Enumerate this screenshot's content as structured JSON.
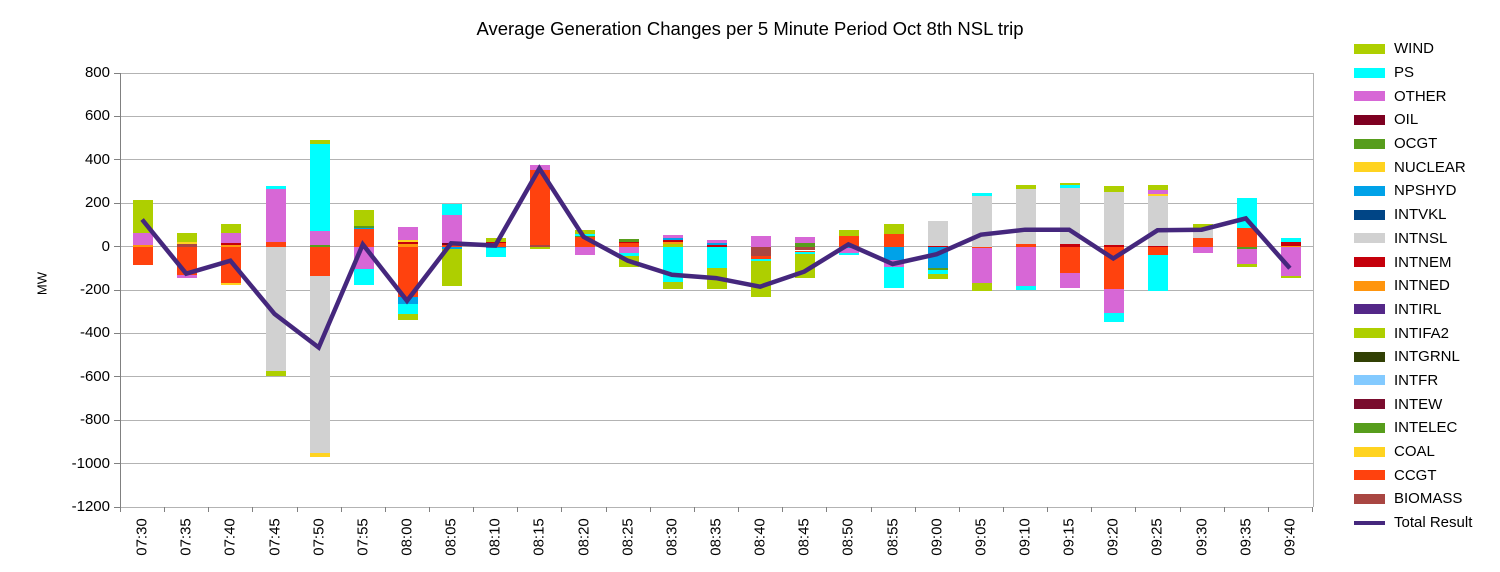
{
  "title": "Average Generation Changes per 5 Minute Period Oct 8th NSL trip",
  "y_axis": {
    "label": "MW",
    "min": -1200,
    "max": 800,
    "step": 200,
    "ticks": [
      "800",
      "600",
      "400",
      "200",
      "0",
      "-200",
      "-400",
      "-600",
      "-800",
      "-1000",
      "-1200"
    ]
  },
  "legend": {
    "position": "right",
    "items": [
      {
        "label": "WIND",
        "color": "#AECF00",
        "type": "box"
      },
      {
        "label": "PS",
        "color": "#00FFFF",
        "type": "box"
      },
      {
        "label": "OTHER",
        "color": "#D767D6",
        "type": "box"
      },
      {
        "label": "OIL",
        "color": "#7E0021",
        "type": "box"
      },
      {
        "label": "OCGT",
        "color": "#579D1C",
        "type": "box"
      },
      {
        "label": "NUCLEAR",
        "color": "#FFD320",
        "type": "box"
      },
      {
        "label": "NPSHYD",
        "color": "#00A2E8",
        "type": "box"
      },
      {
        "label": "INTVKL",
        "color": "#004586",
        "type": "box"
      },
      {
        "label": "INTNSL",
        "color": "#D1D1D1",
        "type": "box"
      },
      {
        "label": "INTNEM",
        "color": "#C5000B",
        "type": "box"
      },
      {
        "label": "INTNED",
        "color": "#FF950E",
        "type": "box"
      },
      {
        "label": "INTIRL",
        "color": "#542788",
        "type": "box"
      },
      {
        "label": "INTIFA2",
        "color": "#AECF00",
        "type": "box"
      },
      {
        "label": "INTGRNL",
        "color": "#314004",
        "type": "box"
      },
      {
        "label": "INTFR",
        "color": "#83CAFF",
        "type": "box"
      },
      {
        "label": "INTEW",
        "color": "#7A0C2E",
        "type": "box"
      },
      {
        "label": "INTELEC",
        "color": "#579D1C",
        "type": "box"
      },
      {
        "label": "COAL",
        "color": "#FFD320",
        "type": "box"
      },
      {
        "label": "CCGT",
        "color": "#FF420E",
        "type": "box"
      },
      {
        "label": "BIOMASS",
        "color": "#A94642",
        "type": "box"
      },
      {
        "label": "Total Result",
        "color": "#45277D",
        "type": "line"
      }
    ]
  },
  "chart_data": {
    "type": "bar",
    "subtype": "stacked-bar-with-line",
    "title": "Average Generation Changes per 5 Minute Period Oct 8th NSL trip",
    "xlabel": "",
    "ylabel": "MW",
    "ylim": [
      -1200,
      800
    ],
    "grid": "horizontal",
    "legend_position": "right",
    "categories": [
      "07:30",
      "07:35",
      "07:40",
      "07:45",
      "07:50",
      "07:55",
      "08:00",
      "08:05",
      "08:10",
      "08:15",
      "08:20",
      "08:25",
      "08:30",
      "08:35",
      "08:40",
      "08:45",
      "08:50",
      "08:55",
      "09:00",
      "09:05",
      "09:10",
      "09:15",
      "09:20",
      "09:25",
      "09:30",
      "09:35",
      "09:40"
    ],
    "series": [
      {
        "name": "WIND",
        "color": "#AECF00",
        "values": [
          152,
          43,
          42,
          -20,
          17,
          72,
          -30,
          -170,
          20,
          -10,
          20,
          -50,
          -30,
          -95,
          -165,
          -107,
          25,
          46,
          -25,
          -35,
          18,
          10,
          30,
          23,
          20,
          -15,
          -10
        ]
      },
      {
        "name": "PS",
        "color": "#00FFFF",
        "values": [
          0,
          0,
          0,
          13,
          400,
          -70,
          -45,
          50,
          -45,
          0,
          8,
          -12,
          -165,
          -100,
          -10,
          -9,
          -10,
          -95,
          -15,
          11,
          -18,
          12,
          -38,
          -165,
          0,
          138,
          20
        ]
      },
      {
        "name": "OTHER",
        "color": "#D767D6",
        "values": [
          53,
          -11,
          47,
          245,
          65,
          -105,
          60,
          130,
          0,
          25,
          -37,
          -30,
          14,
          12,
          50,
          27,
          -20,
          -35,
          0,
          -160,
          -182,
          -70,
          -113,
          22,
          -30,
          -66,
          -136
        ]
      },
      {
        "name": "OIL",
        "color": "#7E0021",
        "values": [
          0,
          0,
          0,
          0,
          0,
          0,
          0,
          8,
          0,
          0,
          0,
          0,
          0,
          0,
          0,
          0,
          0,
          0,
          0,
          0,
          0,
          0,
          0,
          0,
          0,
          0,
          0
        ]
      },
      {
        "name": "OCGT",
        "color": "#579D1C",
        "values": [
          0,
          0,
          0,
          0,
          8,
          8,
          0,
          0,
          0,
          0,
          0,
          14,
          0,
          0,
          0,
          15,
          0,
          0,
          -10,
          0,
          0,
          0,
          0,
          0,
          0,
          -12,
          0
        ]
      },
      {
        "name": "NUCLEAR",
        "color": "#FFD320",
        "values": [
          0,
          0,
          0,
          0,
          -15,
          0,
          10,
          0,
          0,
          0,
          0,
          0,
          0,
          0,
          0,
          0,
          0,
          0,
          0,
          0,
          0,
          0,
          0,
          6,
          0,
          0,
          0
        ]
      },
      {
        "name": "NPSHYD",
        "color": "#00A2E8",
        "values": [
          0,
          0,
          0,
          0,
          0,
          8,
          -35,
          -10,
          -5,
          0,
          0,
          0,
          9,
          9,
          0,
          0,
          -8,
          -60,
          -100,
          0,
          0,
          0,
          0,
          0,
          0,
          0,
          0
        ]
      },
      {
        "name": "INTVKL",
        "color": "#004586",
        "values": [
          0,
          0,
          0,
          0,
          0,
          0,
          0,
          0,
          0,
          0,
          0,
          0,
          0,
          0,
          0,
          0,
          0,
          0,
          0,
          0,
          0,
          0,
          0,
          0,
          0,
          0,
          0
        ]
      },
      {
        "name": "INTNSL",
        "color": "#D1D1D1",
        "values": [
          0,
          0,
          0,
          -575,
          -817,
          0,
          0,
          0,
          0,
          0,
          0,
          0,
          0,
          0,
          0,
          0,
          0,
          0,
          115,
          235,
          253,
          262,
          245,
          230,
          45,
          0,
          0
        ]
      },
      {
        "name": "INTNEM",
        "color": "#C5000B",
        "values": [
          0,
          0,
          8,
          0,
          0,
          0,
          10,
          0,
          6,
          0,
          0,
          6,
          11,
          9,
          0,
          0,
          0,
          0,
          5,
          0,
          0,
          10,
          6,
          5,
          0,
          0,
          14
        ]
      },
      {
        "name": "INTNED",
        "color": "#FF950E",
        "values": [
          8,
          0,
          9,
          0,
          0,
          0,
          12,
          0,
          0,
          0,
          0,
          0,
          11,
          0,
          0,
          0,
          0,
          0,
          0,
          0,
          0,
          0,
          0,
          0,
          0,
          0,
          5
        ]
      },
      {
        "name": "INTIRL",
        "color": "#542788",
        "values": [
          0,
          0,
          0,
          0,
          0,
          0,
          0,
          0,
          0,
          0,
          0,
          0,
          0,
          0,
          0,
          0,
          0,
          0,
          0,
          0,
          0,
          0,
          0,
          0,
          0,
          0,
          0
        ]
      },
      {
        "name": "INTIFA2",
        "color": "#AECF00",
        "values": [
          0,
          0,
          0,
          0,
          0,
          0,
          0,
          0,
          0,
          0,
          0,
          0,
          10,
          0,
          0,
          0,
          0,
          0,
          0,
          0,
          0,
          0,
          0,
          0,
          0,
          0,
          0
        ]
      },
      {
        "name": "INTGRNL",
        "color": "#314004",
        "values": [
          0,
          0,
          0,
          0,
          0,
          0,
          0,
          0,
          0,
          0,
          0,
          0,
          0,
          0,
          0,
          0,
          0,
          0,
          0,
          0,
          0,
          0,
          0,
          0,
          0,
          0,
          0
        ]
      },
      {
        "name": "INTFR",
        "color": "#83CAFF",
        "values": [
          0,
          0,
          0,
          0,
          0,
          0,
          0,
          0,
          0,
          0,
          0,
          0,
          0,
          0,
          0,
          0,
          0,
          0,
          0,
          0,
          0,
          0,
          0,
          0,
          0,
          0,
          0
        ]
      },
      {
        "name": "INTEW",
        "color": "#7A0C2E",
        "values": [
          0,
          0,
          0,
          0,
          0,
          0,
          0,
          0,
          0,
          0,
          0,
          0,
          0,
          0,
          0,
          0,
          0,
          0,
          0,
          0,
          0,
          0,
          0,
          0,
          0,
          0,
          0
        ]
      },
      {
        "name": "INTELEC",
        "color": "#579D1C",
        "values": [
          0,
          0,
          0,
          0,
          0,
          0,
          0,
          0,
          0,
          0,
          8,
          0,
          0,
          0,
          0,
          0,
          0,
          0,
          0,
          0,
          0,
          0,
          0,
          0,
          0,
          0,
          0
        ]
      },
      {
        "name": "COAL",
        "color": "#FFD320",
        "values": [
          0,
          10,
          -8,
          0,
          0,
          0,
          0,
          0,
          0,
          0,
          0,
          0,
          0,
          0,
          0,
          0,
          0,
          0,
          0,
          0,
          0,
          0,
          0,
          0,
          0,
          0,
          0
        ]
      },
      {
        "name": "CCGT",
        "color": "#FF420E",
        "values": [
          -85,
          -133,
          -170,
          20,
          -136,
          80,
          -230,
          9,
          15,
          345,
          42,
          15,
          0,
          0,
          -10,
          -9,
          50,
          58,
          0,
          -8,
          14,
          -120,
          -195,
          -40,
          40,
          86,
          0
        ]
      },
      {
        "name": "BIOMASS",
        "color": "#A94642",
        "values": [
          0,
          10,
          0,
          0,
          0,
          0,
          0,
          0,
          0,
          8,
          0,
          0,
          0,
          0,
          -45,
          -18,
          0,
          0,
          0,
          0,
          0,
          0,
          0,
          0,
          0,
          0,
          0
        ]
      }
    ],
    "line_series": {
      "name": "Total Result",
      "color": "#45277D",
      "values": [
        125,
        -125,
        -65,
        -310,
        -465,
        10,
        -250,
        15,
        5,
        360,
        45,
        -65,
        -130,
        -145,
        -185,
        -115,
        10,
        -80,
        -35,
        55,
        78,
        78,
        -55,
        75,
        78,
        130,
        -100
      ]
    }
  }
}
